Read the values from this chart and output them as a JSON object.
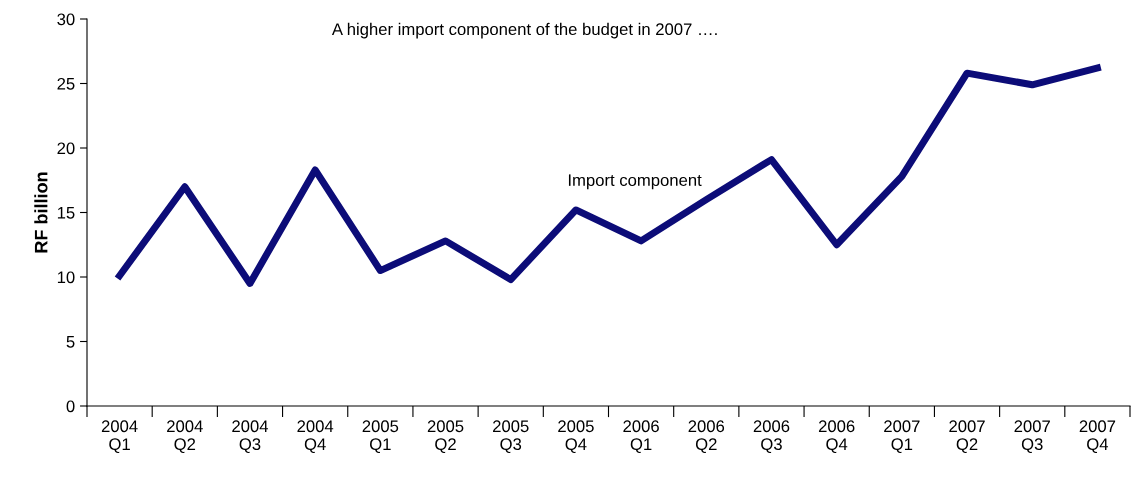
{
  "chart_data": {
    "type": "line",
    "title": "A higher import component of the budget in 2007 ….",
    "ylabel": "RF billion",
    "categories": [
      "2004\nQ1",
      "2004\nQ2",
      "2004\nQ3",
      "2004\nQ4",
      "2005\nQ1",
      "2005\nQ2",
      "2005\nQ3",
      "2005\nQ4",
      "2006\nQ1",
      "2006\nQ2",
      "2006\nQ3",
      "2006\nQ4",
      "2007\nQ1",
      "2007\nQ2",
      "2007\nQ3",
      "2007\nQ4"
    ],
    "series": [
      {
        "name": "Import component",
        "color": "#0c0c78",
        "values": [
          10.1,
          17.0,
          9.5,
          18.3,
          10.5,
          12.8,
          9.8,
          15.2,
          12.8,
          16.0,
          19.1,
          12.5,
          17.8,
          25.8,
          24.9,
          26.2
        ]
      }
    ],
    "ylim": [
      0,
      30
    ],
    "yticks": [
      0,
      5,
      10,
      15,
      20,
      25,
      30
    ],
    "grid": false,
    "legend": false,
    "marker": "none",
    "line_style": "solid"
  }
}
